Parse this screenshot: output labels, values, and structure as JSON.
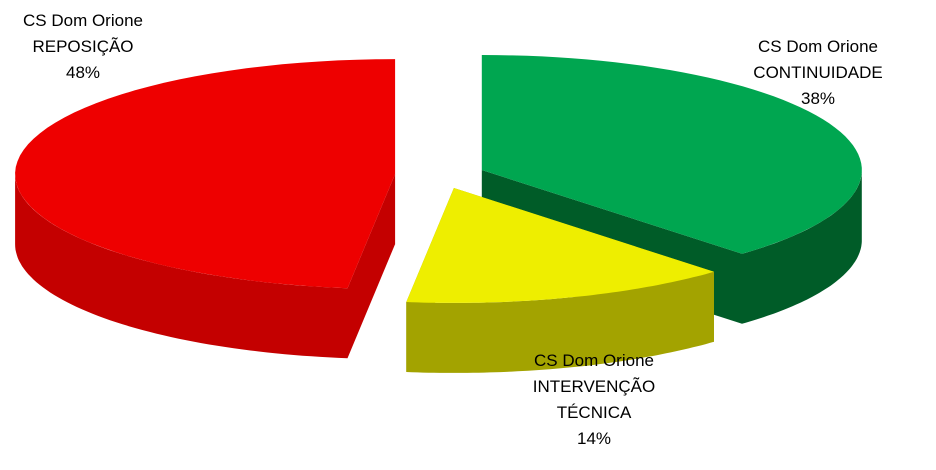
{
  "chart_data": {
    "type": "pie3d",
    "categories": [
      "CS Dom Orione CONTINUIDADE",
      "CS Dom Orione INTERVENÇÃO TÉCNICA",
      "CS Dom Orione REPOSIÇÃO"
    ],
    "values": [
      38,
      14,
      48
    ],
    "value_labels": [
      "38%",
      "14%",
      "48%"
    ],
    "colors": [
      "#00a650",
      "#eeee00",
      "#ee0000"
    ],
    "side_colors": [
      "#005c28",
      "#a3a300",
      "#c40000"
    ]
  }
}
